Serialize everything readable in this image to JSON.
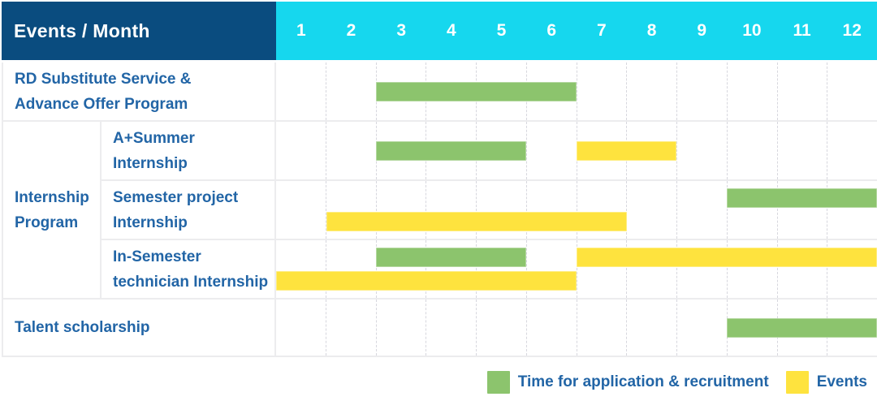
{
  "header": {
    "title": "Events / Month",
    "months": [
      "1",
      "2",
      "3",
      "4",
      "5",
      "6",
      "7",
      "8",
      "9",
      "10",
      "11",
      "12"
    ]
  },
  "colors": {
    "header_bg": "#0A4C7F",
    "months_bg": "#16D7EE",
    "text_blue": "#2265A6",
    "green": "#8CC46D",
    "yellow": "#FEE33E",
    "row_line": "#ECECEE",
    "month_gridline": "#D7D7DE"
  },
  "table": {
    "rows": [
      {
        "label": "RD Substitute Service & Advance Offer Program",
        "label_lines": [
          "RD Substitute Service &",
          "Advance Offer Program"
        ],
        "in_group": false,
        "bar_lines": [
          [
            {
              "color": "green",
              "start_month": 3,
              "end_month": 6
            }
          ]
        ]
      },
      {
        "label": "A+Summer Internship",
        "label_lines": [
          "A+Summer",
          "Internship"
        ],
        "in_group": true,
        "group": {
          "label": "Internship Program",
          "label_lines": [
            "Internship",
            "Program"
          ],
          "row_span": 3
        },
        "bar_lines": [
          [
            {
              "color": "green",
              "start_month": 3,
              "end_month": 5
            },
            {
              "color": "yellow",
              "start_month": 7,
              "end_month": 8
            }
          ]
        ]
      },
      {
        "label": "Semester project Internship",
        "label_lines": [
          "Semester project",
          "Internship"
        ],
        "in_group": true,
        "bar_lines": [
          [
            {
              "color": "green",
              "start_month": 10,
              "end_month": 12
            }
          ],
          [
            {
              "color": "yellow",
              "start_month": 2,
              "end_month": 7
            }
          ]
        ]
      },
      {
        "label": "In-Semester technician Internship",
        "label_lines": [
          "In-Semester",
          "technician Internship"
        ],
        "in_group": true,
        "bar_lines": [
          [
            {
              "color": "green",
              "start_month": 3,
              "end_month": 5
            },
            {
              "color": "yellow",
              "start_month": 7,
              "end_month": 12
            }
          ],
          [
            {
              "color": "yellow",
              "start_month": 1,
              "end_month": 6
            }
          ]
        ]
      },
      {
        "label": "Talent scholarship",
        "label_lines": [
          "Talent scholarship"
        ],
        "in_group": false,
        "bar_lines": [
          [
            {
              "color": "green",
              "start_month": 10,
              "end_month": 12
            }
          ]
        ]
      }
    ]
  },
  "legend": {
    "items": [
      {
        "color": "green",
        "label": "Time for application & recruitment"
      },
      {
        "color": "yellow",
        "label": "Events"
      }
    ]
  },
  "chart_data": {
    "type": "bar",
    "subtype": "gantt",
    "title": "Events / Month",
    "xlabel": "Month",
    "x_ticks": [
      1,
      2,
      3,
      4,
      5,
      6,
      7,
      8,
      9,
      10,
      11,
      12
    ],
    "x_range": [
      1,
      12
    ],
    "grid": true,
    "legend_position": "bottom-right",
    "legend": [
      {
        "label": "Time for application & recruitment",
        "color": "#8CC46D"
      },
      {
        "label": "Events",
        "color": "#FEE33E"
      }
    ],
    "rows": [
      {
        "group": null,
        "event": "RD Substitute Service & Advance Offer Program",
        "application_recruitment_month_ranges": [
          [
            3,
            6
          ]
        ],
        "events_month_ranges": []
      },
      {
        "group": "Internship Program",
        "event": "A+Summer Internship",
        "application_recruitment_month_ranges": [
          [
            3,
            5
          ]
        ],
        "events_month_ranges": [
          [
            7,
            8
          ]
        ]
      },
      {
        "group": "Internship Program",
        "event": "Semester project Internship",
        "application_recruitment_month_ranges": [
          [
            10,
            12
          ]
        ],
        "events_month_ranges": [
          [
            2,
            7
          ]
        ]
      },
      {
        "group": "Internship Program",
        "event": "In-Semester technician Internship",
        "application_recruitment_month_ranges": [
          [
            3,
            5
          ]
        ],
        "events_month_ranges": [
          [
            7,
            12
          ],
          [
            1,
            6
          ]
        ]
      },
      {
        "group": null,
        "event": "Talent scholarship",
        "application_recruitment_month_ranges": [
          [
            10,
            12
          ]
        ],
        "events_month_ranges": []
      }
    ]
  }
}
